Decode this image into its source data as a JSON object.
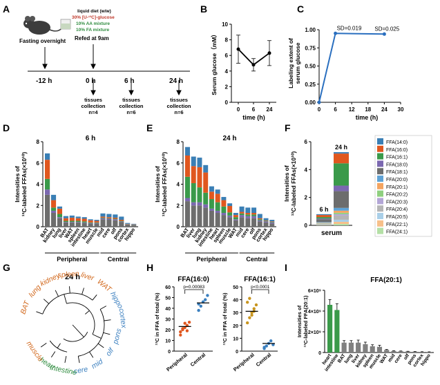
{
  "panels": {
    "A": {
      "letter": "A",
      "diet_title": "liquid diet (w/w)",
      "diet_line1": "30% [U-¹³C]-glucose",
      "diet_line2": "10% AA mixture",
      "diet_line3": "10% FA mixture",
      "fasting_label": "Fasting overnight",
      "refed_label": "Refed at 9am",
      "timepoints": [
        "-12 h",
        "0 h",
        "6 h",
        "24 h"
      ],
      "collections": [
        {
          "l1": "tissues",
          "l2": "collection",
          "n": "n=4"
        },
        {
          "l1": "tissues",
          "l2": "collection",
          "n": "n=6"
        },
        {
          "l1": "tissues",
          "l2": "collection",
          "n": "n=6"
        }
      ],
      "colors": {
        "glucose": "#c0392b",
        "aa": "#2e8b3e",
        "fa": "#2e8b3e"
      }
    },
    "B": {
      "letter": "B"
    },
    "C": {
      "letter": "C"
    },
    "D": {
      "letter": "D"
    },
    "E": {
      "letter": "E"
    },
    "F": {
      "letter": "F"
    },
    "G": {
      "letter": "G",
      "title": "24 h",
      "leaves": [
        {
          "name": "BAT",
          "color": "#d2691e"
        },
        {
          "name": "lung",
          "color": "#d2691e"
        },
        {
          "name": "kidney",
          "color": "#d2691e"
        },
        {
          "name": "spleen",
          "color": "#d2691e"
        },
        {
          "name": "liver",
          "color": "#d2691e"
        },
        {
          "name": "WAT",
          "color": "#d2691e"
        },
        {
          "name": "hippo",
          "color": "#3a7fbf"
        },
        {
          "name": "cortex",
          "color": "#3a7fbf"
        },
        {
          "name": "pons",
          "color": "#3a7fbf"
        },
        {
          "name": "olf",
          "color": "#3a7fbf"
        },
        {
          "name": "mid",
          "color": "#3a7fbf"
        },
        {
          "name": "cere",
          "color": "#3a7fbf"
        },
        {
          "name": "intestine",
          "color": "#2e8b3e"
        },
        {
          "name": "heart",
          "color": "#2e8b3e"
        },
        {
          "name": "muscle",
          "color": "#d2691e"
        }
      ]
    },
    "H": {
      "letter": "H"
    },
    "I": {
      "letter": "I"
    }
  },
  "legend": {
    "items": [
      {
        "label": "FFA(14:0)",
        "color": "#3a7fb5"
      },
      {
        "label": "FFA(16:0)",
        "color": "#e0571f"
      },
      {
        "label": "FFA(16:1)",
        "color": "#3a9a4a"
      },
      {
        "label": "FFA(18:0)",
        "color": "#7b68b0"
      },
      {
        "label": "FFA(18:1)",
        "color": "#6d6d6d"
      },
      {
        "label": "FFA(20:0)",
        "color": "#5fa3d6"
      },
      {
        "label": "FFA(20:1)",
        "color": "#f4a460"
      },
      {
        "label": "FFA(20:2)",
        "color": "#8fcf7f"
      },
      {
        "label": "FFA(20:3)",
        "color": "#b3a6d6"
      },
      {
        "label": "FFA(20:4)",
        "color": "#b5b5b5"
      },
      {
        "label": "FFA(20:5)",
        "color": "#a9cfe8"
      },
      {
        "label": "FFA(22:1)",
        "color": "#f7c08a"
      },
      {
        "label": "FFA(24:1)",
        "color": "#b4e0a6"
      }
    ]
  },
  "chart_data": [
    {
      "id": "B",
      "type": "line",
      "x": [
        0,
        6,
        24
      ],
      "series": [
        {
          "name": "Serum glucose",
          "values": [
            6.8,
            4.8,
            6.3
          ],
          "err": [
            1.8,
            0.8,
            1.6
          ]
        }
      ],
      "xticks": [
        "0",
        "6",
        "24"
      ],
      "yticks": [
        "0",
        "2",
        "4",
        "6",
        "8",
        "10"
      ],
      "xlabel": "time (h)",
      "ylabel": "Serum glucose（mM）",
      "ylim": [
        0,
        10
      ]
    },
    {
      "id": "C",
      "type": "line",
      "x": [
        0,
        6,
        24
      ],
      "series": [
        {
          "name": "Labeling extent of serum glucose",
          "values": [
            0,
            0.95,
            0.94
          ],
          "err": [
            0,
            0.019,
            0.025
          ]
        }
      ],
      "xticks": [
        "0",
        "6",
        "12",
        "18",
        "24",
        "30"
      ],
      "yticks": [
        "0.00",
        "0.25",
        "0.50",
        "0.75",
        "1.00"
      ],
      "xlabel": "time (h)",
      "ylabel": "Labeling extent of serum glucose",
      "xlim": [
        0,
        30
      ],
      "ylim": [
        0,
        1.1
      ],
      "annotations": [
        "SD=0.019",
        "SD=0.025"
      ]
    },
    {
      "id": "D",
      "type": "bar",
      "stacked": true,
      "title": "6 h",
      "categories": [
        "BAT",
        "kidney",
        "lung",
        "liver",
        "WAT",
        "spleen",
        "intestine",
        "heart",
        "muscle",
        "mid",
        "cere",
        "olf",
        "pons",
        "cortex",
        "hippo"
      ],
      "series_names": [
        "FFA(18:1)",
        "FFA(18:0)",
        "FFA(16:1)",
        "FFA(16:0)",
        "FFA(14:0)"
      ],
      "series": [
        [
          3.0,
          1.3,
          0.8,
          0.4,
          0.4,
          0.4,
          0.35,
          0.3,
          0.3,
          0.7,
          0.65,
          0.6,
          0.45,
          0.2,
          0.15
        ],
        [
          0.5,
          0.2,
          0.1,
          0.05,
          0.05,
          0.05,
          0.05,
          0.05,
          0.05,
          0.1,
          0.1,
          0.1,
          0.05,
          0.02,
          0.02
        ],
        [
          1.0,
          0.3,
          0.3,
          0.1,
          0.1,
          0.1,
          0.1,
          0.05,
          0.05,
          0.05,
          0.05,
          0.05,
          0.05,
          0.02,
          0.02
        ],
        [
          1.8,
          0.7,
          0.5,
          0.25,
          0.3,
          0.25,
          0.25,
          0.2,
          0.15,
          0.1,
          0.1,
          0.1,
          0.1,
          0.03,
          0.03
        ],
        [
          0.6,
          0.5,
          0.2,
          0.2,
          0.2,
          0.15,
          0.15,
          0.1,
          0.1,
          0.3,
          0.3,
          0.3,
          0.3,
          0.08,
          0.05
        ]
      ],
      "yticks": [
        "0",
        "2",
        "4",
        "6",
        "8"
      ],
      "ylim": [
        0,
        8
      ],
      "ylabel_l1": "Intensities of",
      "ylabel_l2": "¹³C-labeled FFAs(×10¹⁰)",
      "groups": [
        {
          "label": "Peripheral",
          "from": 0,
          "to": 8
        },
        {
          "label": "Central",
          "from": 9,
          "to": 14
        }
      ]
    },
    {
      "id": "E",
      "type": "bar",
      "stacked": true,
      "title": "24 h",
      "categories": [
        "BAT",
        "liver",
        "lung",
        "kidney",
        "intestine",
        "heart",
        "spleen",
        "muscle",
        "WAT",
        "mid",
        "cere",
        "olf",
        "pons",
        "cortex",
        "hippo"
      ],
      "series_names": [
        "FFA(18:1)",
        "FFA(18:0)",
        "FFA(16:1)",
        "FFA(16:0)",
        "FFA(14:0)"
      ],
      "series": [
        [
          2.4,
          2.0,
          2.0,
          1.8,
          1.5,
          1.3,
          1.1,
          0.9,
          0.6,
          0.9,
          0.8,
          0.8,
          0.5,
          0.4,
          0.3
        ],
        [
          0.3,
          0.3,
          0.3,
          0.3,
          0.2,
          0.2,
          0.2,
          0.15,
          0.1,
          0.2,
          0.2,
          0.2,
          0.1,
          0.1,
          0.1
        ],
        [
          2.0,
          1.8,
          1.4,
          1.1,
          0.9,
          0.8,
          0.6,
          0.3,
          0.2,
          0.15,
          0.15,
          0.15,
          0.1,
          0.05,
          0.05
        ],
        [
          2.0,
          1.6,
          1.9,
          1.9,
          0.7,
          0.8,
          0.6,
          0.6,
          0.2,
          0.15,
          0.15,
          0.15,
          0.1,
          0.05,
          0.05
        ],
        [
          0.8,
          0.9,
          0.9,
          0.7,
          0.5,
          0.4,
          0.3,
          0.25,
          0.2,
          0.5,
          0.5,
          0.5,
          0.4,
          0.2,
          0.15
        ]
      ],
      "yticks": [
        "0",
        "2",
        "4",
        "6",
        "8"
      ],
      "ylim": [
        0,
        8
      ],
      "ylabel_l1": "Intensities of",
      "ylabel_l2": "¹³C-labeled FFAs(×10¹⁰)",
      "groups": [
        {
          "label": "Peripheral",
          "from": 0,
          "to": 8
        },
        {
          "label": "Central",
          "from": 9,
          "to": 14
        }
      ]
    },
    {
      "id": "F",
      "type": "bar",
      "stacked": true,
      "categories": [
        "6 h",
        "24 h"
      ],
      "series_names": [
        "FFA(24:1)",
        "FFA(22:1)",
        "FFA(20:5)",
        "FFA(20:4)",
        "FFA(20:3)",
        "FFA(20:2)",
        "FFA(20:1)",
        "FFA(20:0)",
        "FFA(18:1)",
        "FFA(18:0)",
        "FFA(16:1)",
        "FFA(16:0)",
        "FFA(14:0)"
      ],
      "series": [
        [
          0.02,
          0.1
        ],
        [
          0.02,
          0.15
        ],
        [
          0.02,
          0.15
        ],
        [
          0.05,
          0.3
        ],
        [
          0.02,
          0.1
        ],
        [
          0.03,
          0.1
        ],
        [
          0.03,
          0.15
        ],
        [
          0.05,
          0.2
        ],
        [
          0.2,
          1.2
        ],
        [
          0.05,
          0.4
        ],
        [
          0.1,
          1.6
        ],
        [
          0.15,
          0.7
        ],
        [
          0.06,
          0.1
        ]
      ],
      "yticks": [
        "0",
        "2",
        "4",
        "6"
      ],
      "ylim": [
        0,
        6.2
      ],
      "xlabel": "serum",
      "ylabel_l1": "Intensities of",
      "ylabel_l2": "¹³C-labeled FFAs(×10¹⁰)"
    },
    {
      "id": "H1",
      "type": "scatter",
      "title": "FFA(16:0)",
      "categories": [
        "Peripheral",
        "Central"
      ],
      "points": [
        [
          18,
          20,
          22,
          24,
          27,
          15,
          21,
          26,
          19
        ],
        [
          38,
          42,
          46,
          48,
          52,
          44
        ]
      ],
      "means": [
        23,
        45
      ],
      "colors": [
        "#e0571f",
        "#3a7fbf"
      ],
      "yticks": [
        "0",
        "10",
        "20",
        "30",
        "40",
        "50",
        "60"
      ],
      "ylim": [
        0,
        60
      ],
      "ylabel": "¹³C in FFA of total (%)",
      "pvalue": "p=0.00083"
    },
    {
      "id": "H2",
      "type": "scatter",
      "title": "FFA(16:1)",
      "categories": [
        "Peripheral",
        "Central"
      ],
      "points": [
        [
          22,
          26,
          30,
          33,
          36,
          38,
          41,
          28,
          31
        ],
        [
          2,
          4,
          6,
          8,
          5,
          3
        ]
      ],
      "means": [
        31,
        6
      ],
      "colors": [
        "#c8951f",
        "#3a7fbf"
      ],
      "yticks": [
        "0",
        "10",
        "20",
        "30",
        "40",
        "50"
      ],
      "ylim": [
        0,
        50
      ],
      "ylabel": "¹³C in FFA of total (%)",
      "pvalue": "p<0.0001"
    },
    {
      "id": "I",
      "type": "bar",
      "title": "FFA(20:1)",
      "categories": [
        "heart",
        "intestine",
        "BAT",
        "lung",
        "liver",
        "kidney",
        "spleen",
        "muscle",
        "WAT",
        "mid",
        "cere",
        "olf",
        "pons",
        "cortex",
        "hippo"
      ],
      "values": [
        4.6,
        4.1,
        0.95,
        0.95,
        0.95,
        0.8,
        0.6,
        0.55,
        0.25,
        0.15,
        0.12,
        0.1,
        0.08,
        0.06,
        0.05
      ],
      "err": [
        0.5,
        0.6,
        0.2,
        0.2,
        0.25,
        0.2,
        0.15,
        0.15,
        0.05,
        0.03,
        0.03,
        0.02,
        0.02,
        0.02,
        0.02
      ],
      "colors": [
        "#3a9a4a",
        "#3a9a4a",
        "#808080",
        "#808080",
        "#808080",
        "#808080",
        "#808080",
        "#808080",
        "#808080",
        "#808080",
        "#808080",
        "#808080",
        "#808080",
        "#808080",
        "#808080"
      ],
      "yticks": [
        "0",
        "2×10⁹",
        "4×10⁹",
        "6×10⁹"
      ],
      "ylim": [
        0,
        6
      ],
      "ylabel_l1": "Intensities of",
      "ylabel_l2": "¹³C-labeled FFA(20:1)"
    }
  ]
}
